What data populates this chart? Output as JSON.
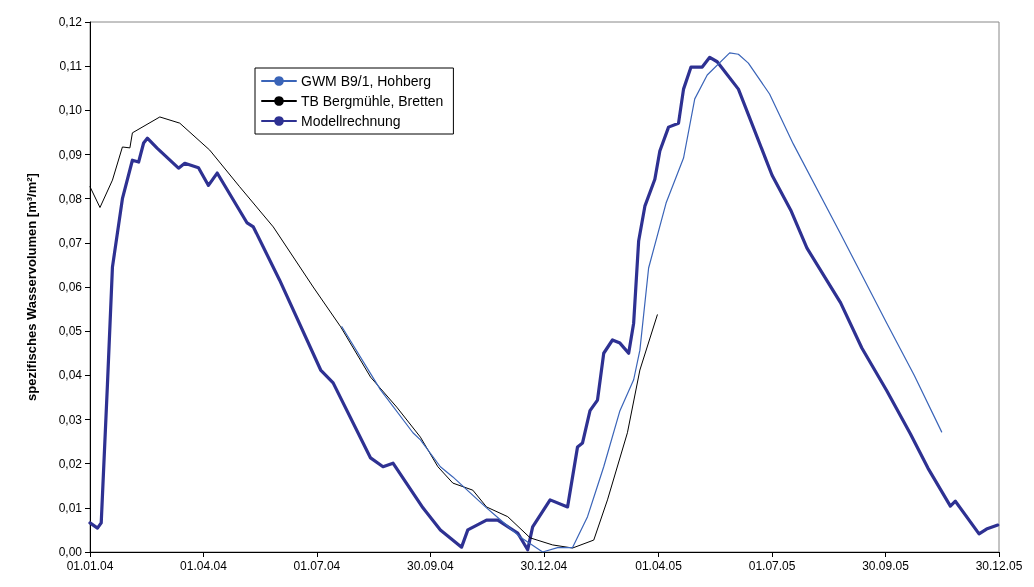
{
  "chart_data": {
    "type": "line",
    "ylabel": "spezifisches Wasservolumen [m³/m²]",
    "xlim": [
      "2004-01-01",
      "2005-12-30"
    ],
    "xticks": [
      {
        "value": "2004-01-01",
        "label": "01.01.04"
      },
      {
        "value": "2004-04-01",
        "label": "01.04.04"
      },
      {
        "value": "2004-07-01",
        "label": "01.07.04"
      },
      {
        "value": "2004-09-30",
        "label": "30.09.04"
      },
      {
        "value": "2004-12-30",
        "label": "30.12.04"
      },
      {
        "value": "2005-04-01",
        "label": "01.04.05"
      },
      {
        "value": "2005-07-01",
        "label": "01.07.05"
      },
      {
        "value": "2005-09-30",
        "label": "30.09.05"
      },
      {
        "value": "2005-12-30",
        "label": "30.12.05"
      }
    ],
    "ylim": [
      0,
      0.12
    ],
    "yticks": [
      {
        "value": 0,
        "label": "0,00"
      },
      {
        "value": 0.01,
        "label": "0,01"
      },
      {
        "value": 0.02,
        "label": "0,02"
      },
      {
        "value": 0.03,
        "label": "0,03"
      },
      {
        "value": 0.04,
        "label": "0,04"
      },
      {
        "value": 0.05,
        "label": "0,05"
      },
      {
        "value": 0.06,
        "label": "0,06"
      },
      {
        "value": 0.07,
        "label": "0,07"
      },
      {
        "value": 0.08,
        "label": "0,08"
      },
      {
        "value": 0.09,
        "label": "0,09"
      },
      {
        "value": 0.1,
        "label": "0,10"
      },
      {
        "value": 0.11,
        "label": "0,11"
      },
      {
        "value": 0.12,
        "label": "0,12"
      }
    ],
    "grid": false,
    "legend": "top left",
    "marker": "none",
    "line_style": "solid",
    "series": [
      {
        "name": "GWM B9/1, Hohberg",
        "color": "#3a64b8",
        "x": [
          "2004-07-21",
          "2004-08-21",
          "2004-09-16",
          "2004-09-22",
          "2004-10-08",
          "2004-10-18",
          "2004-11-14",
          "2004-12-11",
          "2004-12-29",
          "2005-01-10",
          "2005-01-22",
          "2005-02-03",
          "2005-02-16",
          "2005-03-01",
          "2005-03-12",
          "2005-03-17",
          "2005-03-24",
          "2005-04-07",
          "2005-04-21",
          "2005-04-30",
          "2005-05-10",
          "2005-05-28",
          "2005-06-04",
          "2005-06-12",
          "2005-06-29",
          "2005-07-18",
          "2005-08-25",
          "2005-09-11",
          "2005-10-01",
          "2005-10-23",
          "2005-11-14"
        ],
        "values": [
          0.051,
          0.0367,
          0.027,
          0.0254,
          0.0193,
          0.017,
          0.01,
          0.0034,
          0.0,
          0.001,
          0.001,
          0.008,
          0.0193,
          0.032,
          0.039,
          0.0457,
          0.0643,
          0.079,
          0.0892,
          0.1026,
          0.108,
          0.113,
          0.1127,
          0.1107,
          0.1037,
          0.0924,
          0.072,
          0.0627,
          0.0518,
          0.04,
          0.0272
        ]
      },
      {
        "name": "TB Bergmühle, Bretten",
        "color": "#000000",
        "x": [
          "2004-01-01",
          "2004-01-09",
          "2004-01-19",
          "2004-01-27",
          "2004-02-02",
          "2004-02-04",
          "2004-02-26",
          "2004-03-13",
          "2004-04-06",
          "2004-04-30",
          "2004-05-27",
          "2004-06-28",
          "2004-07-20",
          "2004-08-13",
          "2004-09-03",
          "2004-09-22",
          "2004-10-06",
          "2004-10-18",
          "2004-11-03",
          "2004-11-14",
          "2004-12-01",
          "2004-12-19",
          "2005-01-06",
          "2005-01-22",
          "2005-02-08",
          "2005-02-19",
          "2005-03-07",
          "2005-03-17",
          "2005-03-31"
        ],
        "values": [
          0.0827,
          0.078,
          0.0842,
          0.0917,
          0.0915,
          0.0949,
          0.0985,
          0.0971,
          0.091,
          0.0827,
          0.0736,
          0.06,
          0.051,
          0.0396,
          0.0328,
          0.026,
          0.0193,
          0.0156,
          0.014,
          0.0102,
          0.008,
          0.0032,
          0.0016,
          0.0009,
          0.0027,
          0.0118,
          0.027,
          0.0412,
          0.0537
        ]
      },
      {
        "name": "Modellrechnung",
        "color": "#2e3192",
        "x": [
          "2004-01-01",
          "2004-01-07",
          "2004-01-10",
          "2004-01-15",
          "2004-01-19",
          "2004-01-27",
          "2004-02-04",
          "2004-02-09",
          "2004-02-13",
          "2004-02-16",
          "2004-02-24",
          "2004-03-12",
          "2004-03-17",
          "2004-03-28",
          "2004-04-05",
          "2004-04-12",
          "2004-05-06",
          "2004-05-11",
          "2004-06-01",
          "2004-07-04",
          "2004-07-14",
          "2004-08-13",
          "2004-08-23",
          "2004-08-31",
          "2004-09-24",
          "2004-10-08",
          "2004-10-25",
          "2004-10-30",
          "2004-11-14",
          "2004-11-23",
          "2004-12-09",
          "2004-12-17",
          "2004-12-21",
          "2005-01-04",
          "2005-01-18",
          "2005-01-26",
          "2005-01-30",
          "2005-02-05",
          "2005-02-11",
          "2005-02-16",
          "2005-02-23",
          "2005-03-01",
          "2005-03-08",
          "2005-03-12",
          "2005-03-16",
          "2005-03-21",
          "2005-03-29",
          "2005-04-02",
          "2005-04-09",
          "2005-04-17",
          "2005-04-21",
          "2005-04-27",
          "2005-05-06",
          "2005-05-12",
          "2005-05-18",
          "2005-06-04",
          "2005-07-01",
          "2005-07-16",
          "2005-07-29",
          "2005-08-25",
          "2005-09-11",
          "2005-10-01",
          "2005-10-20",
          "2005-11-03",
          "2005-11-21",
          "2005-11-25",
          "2005-12-14",
          "2005-12-20",
          "2005-12-29"
        ],
        "values": [
          0.0066,
          0.0054,
          0.0066,
          0.038,
          0.0645,
          0.08,
          0.0887,
          0.0883,
          0.0926,
          0.0937,
          0.0914,
          0.0869,
          0.088,
          0.087,
          0.083,
          0.0858,
          0.0745,
          0.0736,
          0.0616,
          0.0412,
          0.0383,
          0.0213,
          0.0193,
          0.0201,
          0.01,
          0.005,
          0.0011,
          0.005,
          0.0072,
          0.0072,
          0.0043,
          0.0005,
          0.0057,
          0.0118,
          0.0102,
          0.0238,
          0.0247,
          0.032,
          0.0344,
          0.045,
          0.048,
          0.0473,
          0.045,
          0.0518,
          0.0704,
          0.0783,
          0.0844,
          0.0908,
          0.0962,
          0.0971,
          0.1048,
          0.1098,
          0.1098,
          0.112,
          0.111,
          0.1048,
          0.0853,
          0.0774,
          0.0688,
          0.0564,
          0.0462,
          0.0365,
          0.0267,
          0.019,
          0.0104,
          0.0115,
          0.0041,
          0.0052,
          0.0061
        ]
      }
    ]
  }
}
